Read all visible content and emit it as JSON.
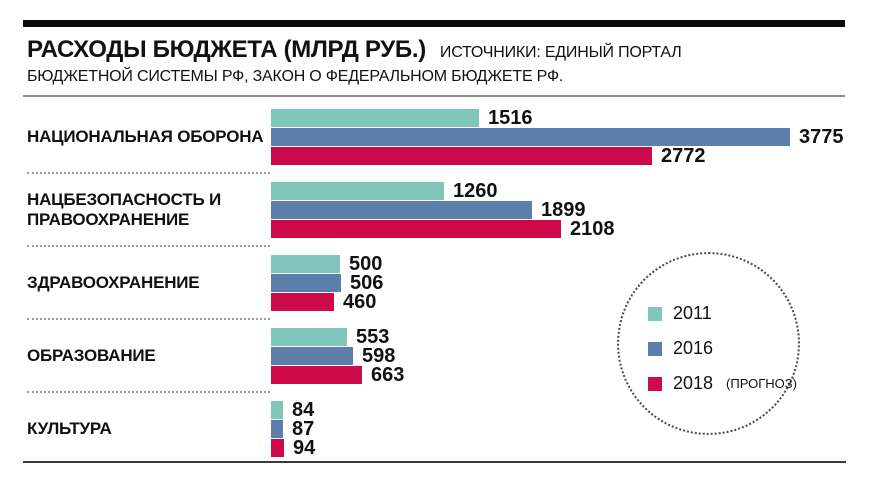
{
  "header": {
    "title": "РАСХОДЫ БЮДЖЕТА (МЛРД РУБ.)",
    "source_line1": "ИСТОЧНИКИ: ЕДИНЫЙ ПОРТАЛ",
    "source_line2": "БЮДЖЕТНОЙ СИСТЕМЫ РФ, ЗАКОН О ФЕДЕРАЛЬНОМ БЮДЖЕТЕ РФ."
  },
  "legend": {
    "items": [
      {
        "label": "2011",
        "suffix": "",
        "color": "#80c6bb"
      },
      {
        "label": "2016",
        "suffix": "",
        "color": "#5b7faa"
      },
      {
        "label": "2018",
        "suffix": "(ПРОГНОЗ)",
        "color": "#cc0a49"
      }
    ]
  },
  "colors": {
    "bar_2011": "#80c6bb",
    "bar_2016": "#5b7faa",
    "bar_2018": "#cc0a49",
    "text": "#111111",
    "top_rule": "#0c0c0c",
    "header_rule": "#8d8d8d",
    "bottom_rule": "#3a3a3a",
    "separator_dots": "#9b9b9b"
  },
  "chart_data": {
    "type": "bar",
    "orientation": "horizontal",
    "title": "РАСХОДЫ БЮДЖЕТА (МЛРД РУБ.)",
    "source": "ИСТОЧНИКИ: ЕДИНЫЙ ПОРТАЛ БЮДЖЕТНОЙ СИСТЕМЫ РФ, ЗАКОН О ФЕДЕРАЛЬНОМ БЮДЖЕТЕ РФ.",
    "categories": [
      "НАЦИОНАЛЬНАЯ ОБОРОНА",
      "НАЦБЕЗОПАСНОСТЬ И ПРАВООХРАНЕНИЕ",
      "ЗДРАВООХРАНЕНИЕ",
      "ОБРАЗОВАНИЕ",
      "КУЛЬТУРА"
    ],
    "series": [
      {
        "name": "2011",
        "color": "#80c6bb",
        "values": [
          1516,
          1260,
          500,
          553,
          84
        ]
      },
      {
        "name": "2016",
        "color": "#5b7faa",
        "values": [
          3775,
          1899,
          506,
          598,
          87
        ]
      },
      {
        "name": "2018 (ПРОГНОЗ)",
        "color": "#cc0a49",
        "values": [
          2772,
          2108,
          460,
          663,
          94
        ]
      }
    ],
    "xmax": 3775,
    "value_labels": true,
    "grid": false,
    "legend_position": "right, inside dotted circle"
  }
}
